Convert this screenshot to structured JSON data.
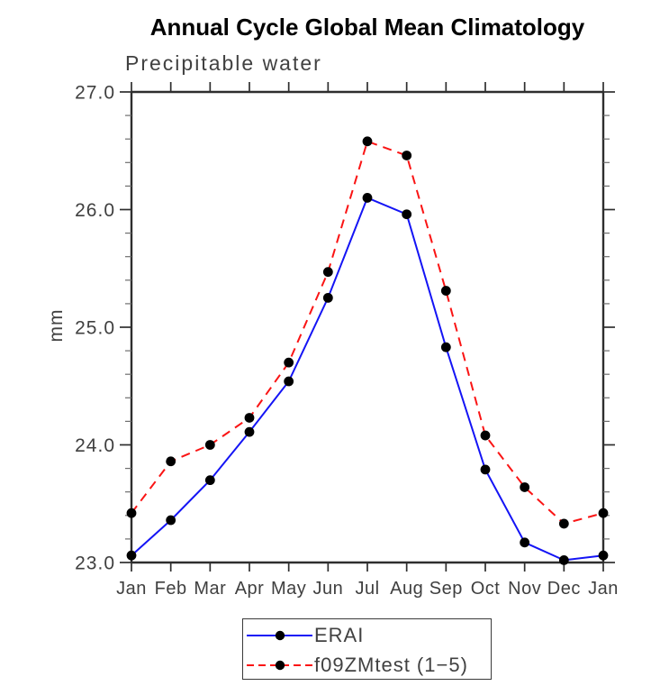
{
  "chart_data": {
    "type": "line",
    "title": "Annual Cycle Global Mean Climatology",
    "subtitle": "Precipitable water",
    "ylabel": "mm",
    "xlabel": "",
    "categories": [
      "Jan",
      "Feb",
      "Mar",
      "Apr",
      "May",
      "Jun",
      "Jul",
      "Aug",
      "Sep",
      "Oct",
      "Nov",
      "Dec",
      "Jan"
    ],
    "series": [
      {
        "name": "ERAI",
        "color": "#1414f5",
        "line_style": "solid",
        "marker": "black-circle",
        "values": [
          23.06,
          23.36,
          23.7,
          24.11,
          24.54,
          25.25,
          26.1,
          25.96,
          24.83,
          23.79,
          23.17,
          23.02,
          23.06
        ]
      },
      {
        "name": "f09ZMtest (1−5)",
        "color": "#fa1414",
        "line_style": "dashed",
        "marker": "black-circle",
        "values": [
          23.42,
          23.86,
          24.0,
          24.23,
          24.7,
          25.47,
          26.58,
          26.46,
          25.31,
          24.08,
          23.64,
          23.33,
          23.42
        ]
      }
    ],
    "ylim": [
      23.0,
      27.0
    ],
    "yticks": {
      "major": [
        23,
        24,
        25,
        26,
        27
      ],
      "labels": [
        "23.0",
        "24.0",
        "25.0",
        "26.0",
        "27.0"
      ],
      "minor_step": 0.2
    },
    "grid": false,
    "legend_position": "bottom-center",
    "marker_color": "#000000"
  },
  "style": {
    "axis_color": "#2e2e2e",
    "minor_tick_color": "#6e6e6e",
    "tick_label_color": "#3f3f3f",
    "title_color": "#000000",
    "subtitle_color": "#414141",
    "legend_text_color": "#414141",
    "background": "#ffffff"
  }
}
